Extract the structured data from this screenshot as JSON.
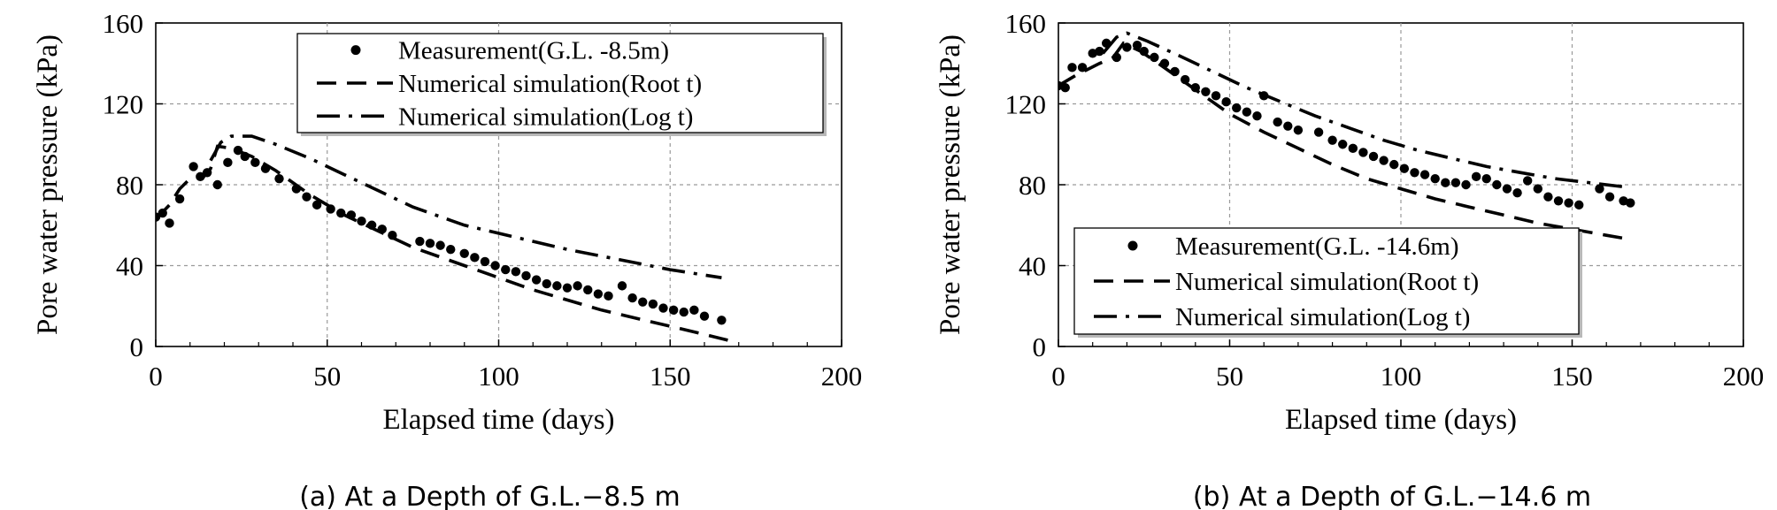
{
  "chart_data": [
    {
      "type": "line",
      "caption": "(a) At a Depth of G.L.−8.5 m",
      "xlabel": "Elapsed time (days)",
      "ylabel": "Pore water pressure (kPa)",
      "xlim": [
        0,
        200
      ],
      "ylim": [
        0,
        160
      ],
      "xticks": [
        "0",
        "50",
        "100",
        "150",
        "200"
      ],
      "yticks": [
        "0",
        "40",
        "80",
        "120",
        "160"
      ],
      "grid": true,
      "legend_position": "top-right",
      "series": [
        {
          "name": "Measurement(G.L. -8.5m)",
          "style": "dots",
          "points": [
            [
              0,
              64
            ],
            [
              2,
              66
            ],
            [
              4,
              61
            ],
            [
              7,
              73
            ],
            [
              11,
              89
            ],
            [
              13,
              84
            ],
            [
              15,
              86
            ],
            [
              18,
              80
            ],
            [
              21,
              91
            ],
            [
              24,
              97
            ],
            [
              26,
              94
            ],
            [
              29,
              91
            ],
            [
              32,
              88
            ],
            [
              36,
              83
            ],
            [
              41,
              78
            ],
            [
              44,
              74
            ],
            [
              47,
              70
            ],
            [
              51,
              68
            ],
            [
              54,
              66
            ],
            [
              57,
              65
            ],
            [
              60,
              62
            ],
            [
              63,
              60
            ],
            [
              66,
              58
            ],
            [
              69,
              55
            ],
            [
              77,
              52
            ],
            [
              80,
              51
            ],
            [
              83,
              50
            ],
            [
              86,
              48
            ],
            [
              90,
              46
            ],
            [
              93,
              44
            ],
            [
              96,
              42
            ],
            [
              99,
              40
            ],
            [
              102,
              38
            ],
            [
              105,
              37
            ],
            [
              108,
              35
            ],
            [
              111,
              33
            ],
            [
              114,
              31
            ],
            [
              117,
              30
            ],
            [
              120,
              29
            ],
            [
              123,
              30
            ],
            [
              126,
              28
            ],
            [
              129,
              26
            ],
            [
              132,
              25
            ],
            [
              136,
              30
            ],
            [
              139,
              24
            ],
            [
              142,
              22
            ],
            [
              145,
              21
            ],
            [
              148,
              19
            ],
            [
              151,
              18
            ],
            [
              154,
              17
            ],
            [
              157,
              18
            ],
            [
              160,
              15
            ],
            [
              165,
              13
            ]
          ]
        },
        {
          "name": "Numerical simulation(Root t)",
          "style": "dash",
          "points": [
            [
              0,
              63
            ],
            [
              4,
              70
            ],
            [
              7,
              78
            ],
            [
              10,
              83
            ],
            [
              14,
              84
            ],
            [
              16,
              88
            ],
            [
              18,
              99
            ],
            [
              22,
              98
            ],
            [
              28,
              94
            ],
            [
              35,
              87
            ],
            [
              45,
              75
            ],
            [
              55,
              65
            ],
            [
              65,
              57
            ],
            [
              75,
              49
            ],
            [
              90,
              40
            ],
            [
              100,
              34
            ],
            [
              110,
              28
            ],
            [
              120,
              23
            ],
            [
              130,
              18
            ],
            [
              140,
              14
            ],
            [
              150,
              10
            ],
            [
              160,
              6
            ],
            [
              167,
              3
            ]
          ]
        },
        {
          "name": "Numerical simulation(Log t)",
          "style": "dashdot",
          "points": [
            [
              16,
              92
            ],
            [
              19,
              101
            ],
            [
              22,
              104
            ],
            [
              28,
              104
            ],
            [
              35,
              100
            ],
            [
              45,
              93
            ],
            [
              55,
              85
            ],
            [
              65,
              77
            ],
            [
              75,
              69
            ],
            [
              90,
              60
            ],
            [
              105,
              54
            ],
            [
              120,
              48
            ],
            [
              135,
              43
            ],
            [
              150,
              38
            ],
            [
              165,
              34
            ]
          ]
        }
      ]
    },
    {
      "type": "line",
      "caption": "(b) At a Depth of G.L.−14.6 m",
      "xlabel": "Elapsed time (days)",
      "ylabel": "Pore water pressure (kPa)",
      "xlim": [
        0,
        200
      ],
      "ylim": [
        0,
        160
      ],
      "xticks": [
        "0",
        "50",
        "100",
        "150",
        "200"
      ],
      "yticks": [
        "0",
        "40",
        "80",
        "120",
        "160"
      ],
      "grid": true,
      "legend_position": "bottom-left",
      "series": [
        {
          "name": "Measurement(G.L. -14.6m)",
          "style": "dots",
          "points": [
            [
              0,
              129
            ],
            [
              2,
              128
            ],
            [
              4,
              138
            ],
            [
              7,
              138
            ],
            [
              10,
              145
            ],
            [
              12,
              146
            ],
            [
              14,
              150
            ],
            [
              17,
              143
            ],
            [
              20,
              148
            ],
            [
              23,
              149
            ],
            [
              25,
              146
            ],
            [
              28,
              143
            ],
            [
              31,
              140
            ],
            [
              34,
              136
            ],
            [
              37,
              132
            ],
            [
              40,
              128
            ],
            [
              43,
              126
            ],
            [
              46,
              124
            ],
            [
              49,
              121
            ],
            [
              52,
              118
            ],
            [
              55,
              116
            ],
            [
              58,
              114
            ],
            [
              60,
              124
            ],
            [
              64,
              111
            ],
            [
              67,
              109
            ],
            [
              70,
              107
            ],
            [
              76,
              106
            ],
            [
              80,
              102
            ],
            [
              83,
              100
            ],
            [
              86,
              98
            ],
            [
              89,
              96
            ],
            [
              92,
              94
            ],
            [
              95,
              92
            ],
            [
              98,
              90
            ],
            [
              101,
              88
            ],
            [
              104,
              86
            ],
            [
              107,
              85
            ],
            [
              110,
              83
            ],
            [
              113,
              81
            ],
            [
              116,
              81
            ],
            [
              119,
              80
            ],
            [
              122,
              84
            ],
            [
              125,
              83
            ],
            [
              128,
              80
            ],
            [
              131,
              78
            ],
            [
              134,
              76
            ],
            [
              137,
              82
            ],
            [
              140,
              78
            ],
            [
              143,
              74
            ],
            [
              146,
              72
            ],
            [
              149,
              71
            ],
            [
              152,
              70
            ],
            [
              158,
              78
            ],
            [
              161,
              74
            ],
            [
              165,
              72
            ],
            [
              167,
              71
            ]
          ]
        },
        {
          "name": "Numerical simulation(Root t)",
          "style": "dash",
          "points": [
            [
              0,
              129
            ],
            [
              5,
              134
            ],
            [
              12,
              140
            ],
            [
              16,
              143
            ],
            [
              19,
              150
            ],
            [
              24,
              146
            ],
            [
              30,
              139
            ],
            [
              40,
              127
            ],
            [
              50,
              115
            ],
            [
              60,
              106
            ],
            [
              70,
              98
            ],
            [
              80,
              90
            ],
            [
              90,
              83
            ],
            [
              100,
              78
            ],
            [
              110,
              73
            ],
            [
              120,
              69
            ],
            [
              130,
              65
            ],
            [
              140,
              61
            ],
            [
              150,
              58
            ],
            [
              160,
              55
            ],
            [
              167,
              53
            ]
          ]
        },
        {
          "name": "Numerical simulation(Log t)",
          "style": "dashdot",
          "points": [
            [
              13,
              145
            ],
            [
              17,
              153
            ],
            [
              20,
              155
            ],
            [
              26,
              151
            ],
            [
              35,
              144
            ],
            [
              45,
              136
            ],
            [
              55,
              128
            ],
            [
              65,
              121
            ],
            [
              75,
              114
            ],
            [
              85,
              108
            ],
            [
              95,
              102
            ],
            [
              105,
              97
            ],
            [
              115,
              93
            ],
            [
              125,
              89
            ],
            [
              135,
              86
            ],
            [
              145,
              83
            ],
            [
              155,
              81
            ],
            [
              165,
              79
            ]
          ]
        }
      ]
    }
  ]
}
